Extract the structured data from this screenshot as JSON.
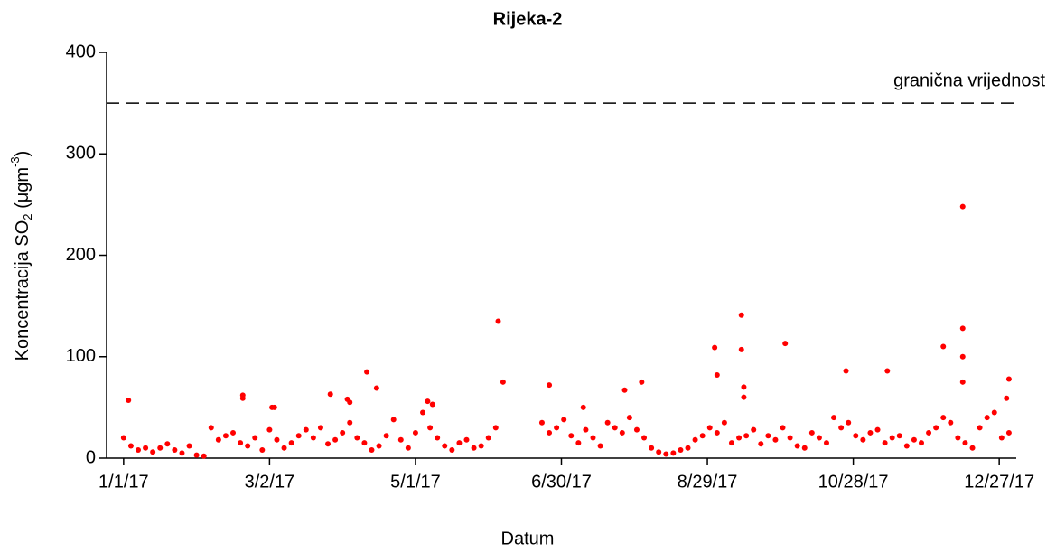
{
  "chart_data": {
    "type": "scatter",
    "title": "Rijeka-2",
    "xlabel": "Datum",
    "ylabel": [
      "Koncentracija SO",
      "2",
      " (μgm",
      "-3",
      ")"
    ],
    "color": "#ff0000",
    "xlim": [
      -7,
      367
    ],
    "ylim": [
      0,
      400
    ],
    "xticks": [
      {
        "value": 0,
        "label": "1/1/17"
      },
      {
        "value": 60,
        "label": "3/2/17"
      },
      {
        "value": 120,
        "label": "5/1/17"
      },
      {
        "value": 180,
        "label": "6/30/17"
      },
      {
        "value": 240,
        "label": "8/29/17"
      },
      {
        "value": 300,
        "label": "10/28/17"
      },
      {
        "value": 360,
        "label": "12/27/17"
      }
    ],
    "yticks": [
      0,
      100,
      200,
      300,
      400
    ],
    "threshold": {
      "value": 350,
      "label": "granična vrijednost"
    },
    "series": [
      {
        "x": [
          0,
          3,
          6,
          9,
          12,
          15,
          18,
          21,
          24,
          27,
          30,
          33,
          36,
          39,
          42,
          45,
          48,
          51,
          54,
          57,
          60,
          63,
          66,
          69,
          72,
          75,
          78,
          81,
          84,
          87,
          90,
          93,
          96,
          99,
          102,
          105,
          108,
          111,
          114,
          117,
          120,
          123,
          126,
          129,
          132,
          135,
          138,
          141,
          144,
          147,
          150,
          153,
          172,
          175,
          178,
          181,
          184,
          187,
          190,
          193,
          196,
          199,
          202,
          205,
          208,
          211,
          214,
          217,
          220,
          223,
          226,
          229,
          232,
          235,
          238,
          241,
          244,
          247,
          250,
          253,
          256,
          259,
          262,
          265,
          268,
          271,
          274,
          277,
          280,
          283,
          286,
          289,
          292,
          295,
          298,
          301,
          304,
          307,
          310,
          313,
          316,
          319,
          322,
          325,
          328,
          331,
          334,
          337,
          340,
          343,
          346,
          349,
          352,
          355,
          358,
          361,
          364,
          2,
          49,
          49,
          61,
          62,
          85,
          92,
          93,
          100,
          104,
          125,
          127,
          154,
          156,
          175,
          189,
          206,
          213,
          243,
          244,
          254,
          254,
          255,
          255,
          272,
          297,
          314,
          337,
          345,
          345,
          345,
          345,
          363,
          364
        ],
        "values": [
          20,
          12,
          8,
          10,
          6,
          10,
          14,
          8,
          5,
          12,
          3,
          2,
          30,
          18,
          22,
          25,
          15,
          12,
          20,
          8,
          28,
          18,
          10,
          15,
          22,
          28,
          20,
          30,
          14,
          18,
          25,
          35,
          20,
          15,
          8,
          12,
          22,
          38,
          18,
          10,
          25,
          45,
          30,
          20,
          12,
          8,
          15,
          18,
          10,
          12,
          20,
          30,
          35,
          25,
          30,
          38,
          22,
          15,
          28,
          20,
          12,
          35,
          30,
          25,
          40,
          28,
          20,
          10,
          6,
          4,
          5,
          8,
          10,
          18,
          22,
          30,
          25,
          35,
          15,
          20,
          22,
          28,
          14,
          22,
          18,
          30,
          20,
          12,
          10,
          25,
          20,
          15,
          40,
          30,
          35,
          22,
          18,
          25,
          28,
          15,
          20,
          22,
          12,
          18,
          15,
          25,
          30,
          40,
          35,
          20,
          15,
          10,
          30,
          40,
          45,
          20,
          25,
          57,
          62,
          59,
          50,
          50,
          63,
          58,
          55,
          85,
          69,
          56,
          53,
          135,
          75,
          72,
          50,
          67,
          75,
          109,
          82,
          141,
          107,
          70,
          60,
          113,
          86,
          86,
          110,
          248,
          128,
          100,
          75,
          59,
          78
        ]
      }
    ]
  }
}
